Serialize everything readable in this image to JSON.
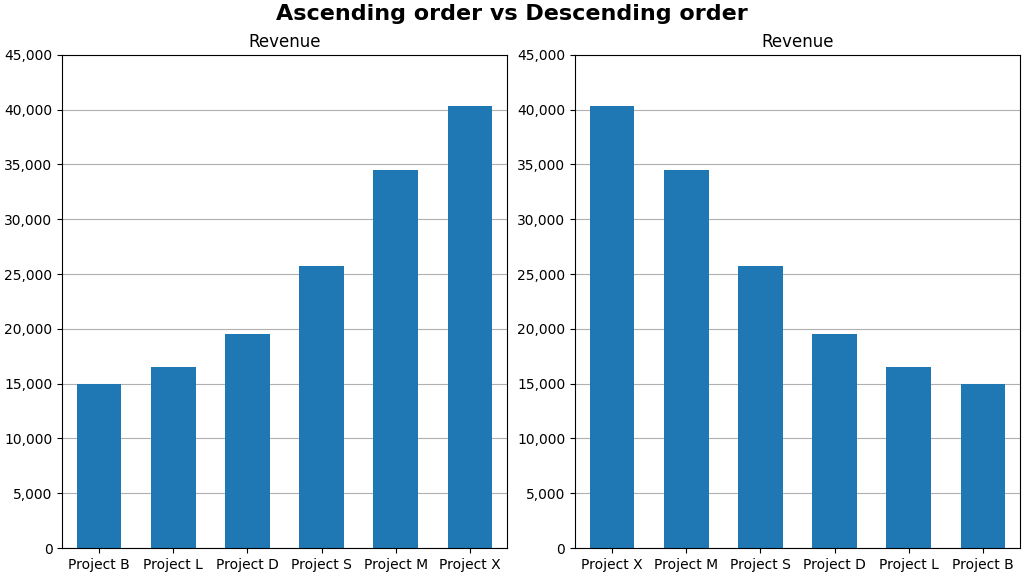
{
  "title": "Ascending order vs Descending order",
  "chart_data": [
    {
      "type": "bar",
      "title": "Revenue",
      "categories": [
        "Project B",
        "Project L",
        "Project D",
        "Project S",
        "Project M",
        "Project X"
      ],
      "values": [
        15000,
        16500,
        19500,
        25700,
        34500,
        40300
      ],
      "ylim": [
        0,
        45000
      ],
      "yticks": [
        0,
        {
          "value": 5000,
          "label": "5,000"
        },
        {
          "value": 10000,
          "label": "10,000"
        },
        {
          "value": 15000,
          "label": "15,000"
        },
        {
          "value": 20000,
          "label": "20,000"
        },
        {
          "value": 25000,
          "label": "25,000"
        },
        {
          "value": 30000,
          "label": "30,000"
        },
        {
          "value": 35000,
          "label": "35,000"
        },
        {
          "value": 40000,
          "label": "40,000"
        },
        {
          "value": 45000,
          "label": "45,000"
        }
      ],
      "grid": true
    },
    {
      "type": "bar",
      "title": "Revenue",
      "categories": [
        "Project X",
        "Project M",
        "Project S",
        "Project D",
        "Project L",
        "Project B"
      ],
      "values": [
        40300,
        34500,
        25700,
        19500,
        16500,
        15000
      ],
      "ylim": [
        0,
        45000
      ],
      "yticks": [
        0,
        {
          "value": 5000,
          "label": "5,000"
        },
        {
          "value": 10000,
          "label": "10,000"
        },
        {
          "value": 15000,
          "label": "15,000"
        },
        {
          "value": 20000,
          "label": "20,000"
        },
        {
          "value": 25000,
          "label": "25,000"
        },
        {
          "value": 30000,
          "label": "30,000"
        },
        {
          "value": 35000,
          "label": "35,000"
        },
        {
          "value": 40000,
          "label": "40,000"
        },
        {
          "value": 45000,
          "label": "45,000"
        }
      ],
      "grid": true
    }
  ]
}
